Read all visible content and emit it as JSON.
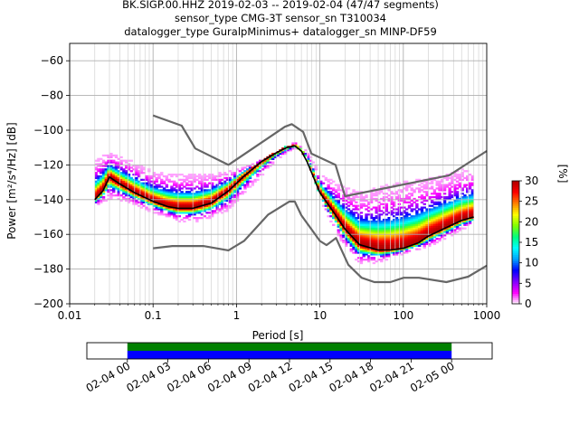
{
  "title_lines": [
    "BK.SIGP.00.HHZ   2019-02-03 -- 2019-02-04  (47/47 segments)",
    "sensor_type CMG-3T sensor_sn T310034",
    "datalogger_type GuralpMinimus+ datalogger_sn MINP-DF59"
  ],
  "chart_data": [
    {
      "type": "heatmap",
      "xlabel": "Period [s]",
      "ylabel": "Power [m²/s⁴/Hz] [dB]",
      "xscale": "log",
      "xlim": [
        0.01,
        1000
      ],
      "ylim": [
        -200,
        -50
      ],
      "x_ticks": [
        0.01,
        0.1,
        1,
        10,
        100,
        1000
      ],
      "x_tick_labels": [
        "0.01",
        "0.1",
        "1",
        "10",
        "100",
        "1000"
      ],
      "y_ticks": [
        -200,
        -180,
        -160,
        -140,
        -120,
        -100,
        -80,
        -60
      ],
      "y_tick_labels": [
        "−200",
        "−180",
        "−160",
        "−140",
        "−120",
        "−100",
        "−80",
        "−60"
      ],
      "grid": true,
      "colorbar": {
        "label": "[%]",
        "range": [
          0,
          30
        ],
        "ticks": [
          0,
          5,
          10,
          15,
          20,
          25,
          30
        ],
        "tick_labels": [
          "0",
          "5",
          "10",
          "15",
          "20",
          "25",
          "30"
        ],
        "colormap": [
          "#ffffff",
          "#ff00ff",
          "#8000ff",
          "#0000ff",
          "#00a0ff",
          "#00ffff",
          "#00ff80",
          "#80ff00",
          "#ffff00",
          "#ff8000",
          "#ff0000",
          "#b00000"
        ]
      },
      "series": [
        {
          "role": "median",
          "color": "#000000",
          "x": [
            0.02,
            0.025,
            0.03,
            0.04,
            0.06,
            0.1,
            0.15,
            0.2,
            0.3,
            0.5,
            0.8,
            1.2,
            2,
            3,
            4,
            5,
            6,
            7,
            10,
            15,
            20,
            30,
            50,
            70,
            100,
            150,
            200,
            300,
            500,
            700
          ],
          "y": [
            -140,
            -135,
            -127,
            -131,
            -136,
            -141,
            -144,
            -145,
            -145,
            -142,
            -135,
            -127,
            -118,
            -113,
            -110,
            -109,
            -112,
            -118,
            -136,
            -148,
            -157,
            -166,
            -169,
            -169,
            -168,
            -165,
            -161,
            -157,
            -152,
            -150
          ]
        },
        {
          "role": "noise-model-high",
          "color": "#666666",
          "x": [
            0.1,
            0.22,
            0.32,
            0.8,
            3.8,
            4.6,
            6.3,
            7.9,
            15.4,
            20,
            354.8,
            1000
          ],
          "y": [
            -91.5,
            -97.4,
            -110.5,
            -120,
            -98.0,
            -96.5,
            -101,
            -113.5,
            -120.0,
            -138.0,
            -126.0,
            -112.0
          ]
        },
        {
          "role": "noise-model-low",
          "color": "#666666",
          "x": [
            0.1,
            0.17,
            0.4,
            0.8,
            1.24,
            2.4,
            4.3,
            5.0,
            6.0,
            10.0,
            12.0,
            15.6,
            21.9,
            31.6,
            45.0,
            70.0,
            101.0,
            154.0,
            328.0,
            600.0,
            1000.0
          ],
          "y": [
            -168.0,
            -166.7,
            -166.7,
            -169.2,
            -163.7,
            -148.6,
            -141.1,
            -141.1,
            -149.0,
            -163.8,
            -166.2,
            -162.1,
            -177.5,
            -185.0,
            -187.5,
            -187.5,
            -185.0,
            -185.0,
            -187.5,
            -184.4,
            -178.0
          ]
        },
        {
          "role": "psd-spread-upper",
          "x": [
            0.02,
            0.03,
            0.05,
            0.1,
            0.2,
            0.4,
            0.8,
            1.5,
            3,
            5,
            7,
            10,
            15,
            20,
            30,
            50,
            100,
            200,
            300,
            500,
            700
          ],
          "y": [
            -118,
            -113,
            -117,
            -124,
            -126,
            -126,
            -124,
            -120,
            -114,
            -107,
            -112,
            -125,
            -130,
            -133,
            -136,
            -133,
            -130,
            -128,
            -126,
            -123,
            -122
          ]
        },
        {
          "role": "psd-spread-lower",
          "x": [
            0.02,
            0.03,
            0.05,
            0.1,
            0.2,
            0.4,
            0.8,
            1.5,
            3,
            5,
            7,
            10,
            15,
            20,
            30,
            50,
            100,
            200,
            300,
            500,
            700
          ],
          "y": [
            -145,
            -140,
            -142,
            -148,
            -153,
            -153,
            -147,
            -133,
            -118,
            -111,
            -115,
            -140,
            -158,
            -168,
            -178,
            -177,
            -172,
            -168,
            -164,
            -158,
            -155
          ]
        }
      ]
    },
    {
      "type": "timeline",
      "x_tick_labels": [
        "02-04 00",
        "02-04 03",
        "02-04 06",
        "02-04 09",
        "02-04 12",
        "02-04 15",
        "02-04 18",
        "02-04 21",
        "02-05 00"
      ],
      "x_range_hours": [
        -3,
        27
      ],
      "segments": [
        {
          "color": "#008000",
          "start_hour": 0,
          "end_hour": 24
        },
        {
          "color": "#0000ff",
          "start_hour": 0,
          "end_hour": 24
        }
      ]
    }
  ]
}
